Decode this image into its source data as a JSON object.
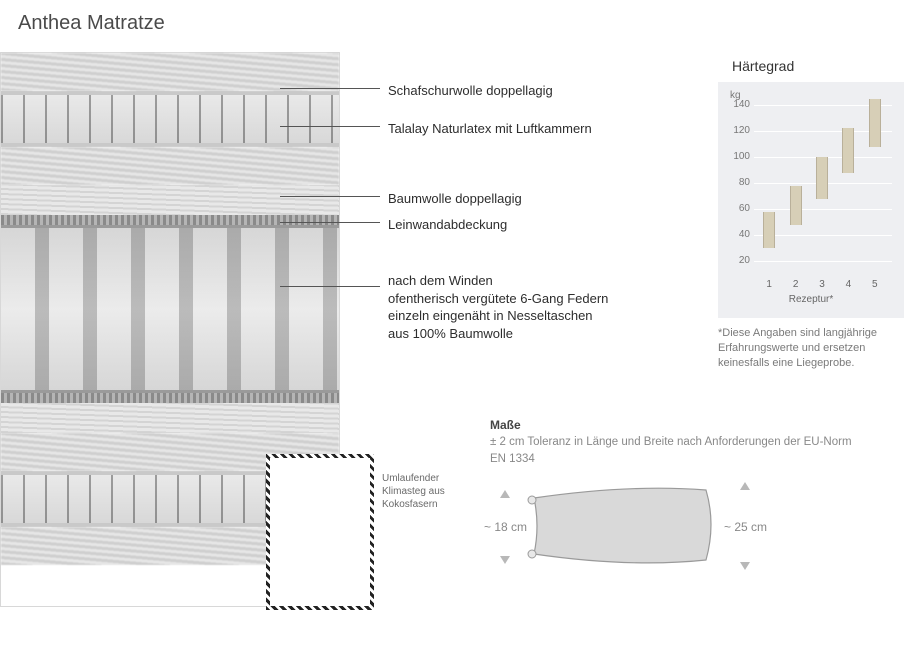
{
  "title": "Anthea Matratze",
  "callouts": {
    "l1": "Schafschurwolle doppellagig",
    "l2": "Talalay Naturlatex mit Luftkammern",
    "l3": "Baumwolle doppellagig",
    "l4": "Leinwandabdeckung",
    "l5": "nach dem Winden\nofentherisch vergütete 6-Gang Federn\neinzeln eingenäht in Nesseltaschen\naus 100% Baumwolle"
  },
  "kokos_label": "Umlaufender\nKlimasteg aus\nKokosfasern",
  "haertegrad": {
    "title": "Härtegrad",
    "unit": "kg",
    "y_ticks": [
      20,
      40,
      60,
      80,
      100,
      120,
      140
    ],
    "y_min": 10,
    "y_max": 150,
    "x_labels": [
      "1",
      "2",
      "3",
      "4",
      "5"
    ],
    "x_axis_label": "Rezeptur*",
    "bars": [
      {
        "low": 30,
        "high": 58
      },
      {
        "low": 48,
        "high": 78
      },
      {
        "low": 68,
        "high": 100
      },
      {
        "low": 88,
        "high": 122
      },
      {
        "low": 108,
        "high": 145
      }
    ],
    "bar_color": "#d7cfb7",
    "bg_color": "#eeeff2",
    "grid_color": "#ffffff",
    "footnote": "*Diese Angaben sind langjährige Erfahrungswerte und ersetzen keinesfalls eine Liegeprobe."
  },
  "masse": {
    "title": "Maße",
    "text": "± 2 cm Toleranz in Länge und Breite nach Anforderungen der EU-Norm EN 1334",
    "height_flat": "~ 18 cm",
    "height_full": "~ 25 cm",
    "profile_fill": "#d9d9d9",
    "profile_stroke": "#9a9a9a"
  },
  "colors": {
    "text": "#333333",
    "muted": "#888888"
  }
}
